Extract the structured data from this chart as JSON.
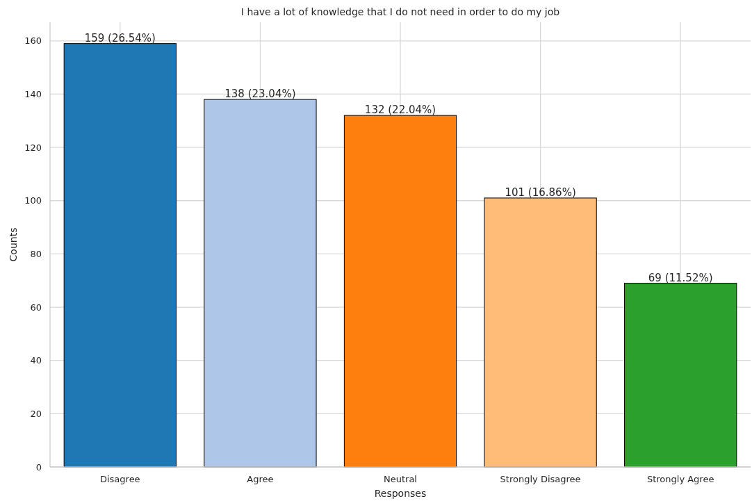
{
  "chart_data": {
    "type": "bar",
    "title": "I have a lot of knowledge that I do not need in order to do my job",
    "xlabel": "Responses",
    "ylabel": "Counts",
    "categories": [
      "Disagree",
      "Agree",
      "Neutral",
      "Strongly Disagree",
      "Strongly Agree"
    ],
    "values": [
      159,
      138,
      132,
      101,
      69
    ],
    "colors": [
      "#1f77b4",
      "#aec7e8",
      "#ff7f0e",
      "#ffbb78",
      "#2ca02c"
    ],
    "value_labels": [
      "159 (26.54%)",
      "138 (23.04%)",
      "132 (22.04%)",
      "101 (16.86%)",
      "69 (11.52%)"
    ],
    "ylim": [
      0,
      167
    ],
    "yticks": [
      0,
      20,
      40,
      60,
      80,
      100,
      120,
      140,
      160
    ],
    "grid": true
  }
}
